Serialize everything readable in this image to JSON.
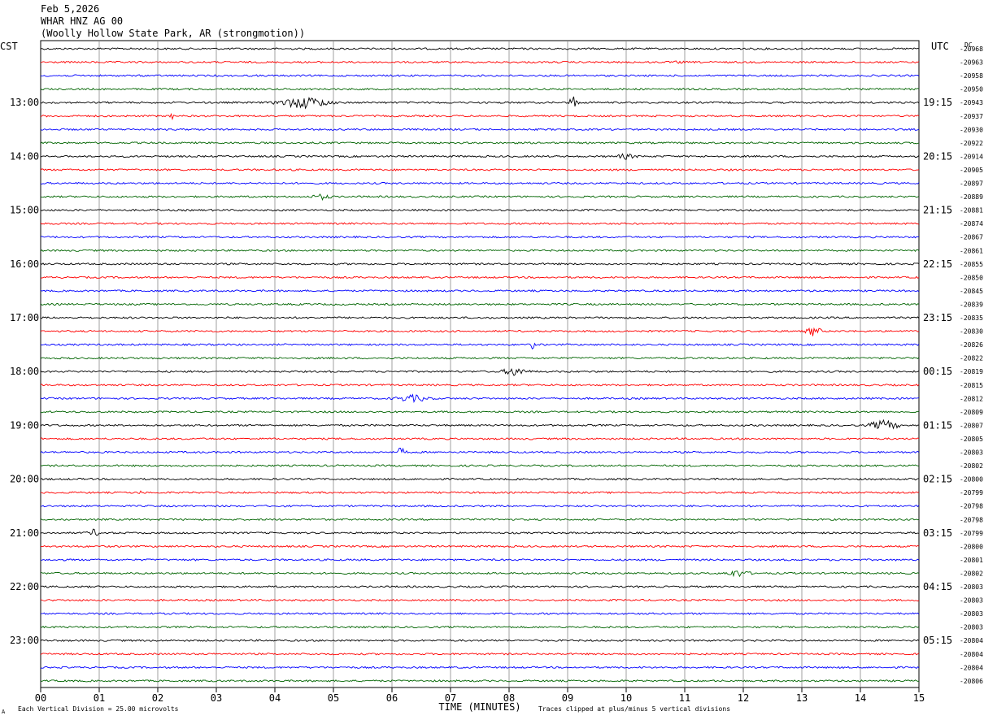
{
  "header": {
    "date": "Feb 5,2026",
    "station": "WHAR HNZ AG 00",
    "location": "(Woolly Hollow State Park, AR (strongmotion))"
  },
  "labels": {
    "left_tz": "CST",
    "right_tz": "UTC",
    "dc_label": "DC"
  },
  "footer": {
    "scale_note": "Each Vertical Division =   25.00 microvolts",
    "xlabel": "TIME (MINUTES)",
    "clip_note": "Traces clipped at plus/minus 5 vertical divisions",
    "corner_mark": "A"
  },
  "chart_data": {
    "type": "line",
    "xlabel": "TIME (MINUTES)",
    "x_ticks": [
      "00",
      "01",
      "02",
      "03",
      "04",
      "05",
      "06",
      "07",
      "08",
      "09",
      "10",
      "11",
      "12",
      "13",
      "14",
      "15"
    ],
    "xlim": [
      0,
      15
    ],
    "trace_colors": [
      "#000000",
      "#ff0000",
      "#0000ff",
      "#006400"
    ],
    "trace_count": 48,
    "left_hour_labels": [
      "13:00",
      "14:00",
      "15:00",
      "16:00",
      "17:00",
      "18:00",
      "19:00",
      "20:00",
      "21:00",
      "22:00",
      "23:00"
    ],
    "right_hour_labels": [
      "19:15",
      "20:15",
      "21:15",
      "22:15",
      "23:15",
      "00:15",
      "01:15",
      "02:15",
      "03:15",
      "04:15",
      "05:15"
    ],
    "hour_label_first_trace": 4,
    "dc_offsets": [
      "-20968",
      "-20963",
      "-20958",
      "-20950",
      "-20943",
      "-20937",
      "-20930",
      "-20922",
      "-20914",
      "-20905",
      "-20897",
      "-20889",
      "-20881",
      "-20874",
      "-20867",
      "-20861",
      "-20855",
      "-20850",
      "-20845",
      "-20839",
      "-20835",
      "-20830",
      "-20826",
      "-20822",
      "-20819",
      "-20815",
      "-20812",
      "-20809",
      "-20807",
      "-20805",
      "-20803",
      "-20802",
      "-20800",
      "-20799",
      "-20798",
      "-20798",
      "-20799",
      "-20800",
      "-20801",
      "-20802",
      "-20803",
      "-20803",
      "-20803",
      "-20803",
      "-20804",
      "-20804",
      "-20804",
      "-20806"
    ],
    "events": [
      {
        "trace": 1,
        "minute": 10.9,
        "width": 0.25,
        "amp": 2
      },
      {
        "trace": 4,
        "minute": 4.5,
        "width": 0.7,
        "amp": 8
      },
      {
        "trace": 4,
        "minute": 9.1,
        "width": 0.12,
        "amp": 9
      },
      {
        "trace": 5,
        "minute": 2.25,
        "width": 0.08,
        "amp": 4
      },
      {
        "trace": 8,
        "minute": 10.0,
        "width": 0.3,
        "amp": 4
      },
      {
        "trace": 11,
        "minute": 4.8,
        "width": 0.3,
        "amp": 4
      },
      {
        "trace": 21,
        "minute": 13.2,
        "width": 0.2,
        "amp": 7
      },
      {
        "trace": 22,
        "minute": 8.4,
        "width": 0.05,
        "amp": 8
      },
      {
        "trace": 24,
        "minute": 8.1,
        "width": 0.35,
        "amp": 6
      },
      {
        "trace": 26,
        "minute": 6.35,
        "width": 0.5,
        "amp": 5
      },
      {
        "trace": 28,
        "minute": 14.4,
        "width": 0.4,
        "amp": 7
      },
      {
        "trace": 30,
        "minute": 6.15,
        "width": 0.15,
        "amp": 6
      },
      {
        "trace": 33,
        "minute": 1.7,
        "width": 0.05,
        "amp": 4
      },
      {
        "trace": 33,
        "minute": 4.05,
        "width": 0.05,
        "amp": 3
      },
      {
        "trace": 36,
        "minute": 0.9,
        "width": 0.2,
        "amp": 5
      },
      {
        "trace": 39,
        "minute": 11.9,
        "width": 0.35,
        "amp": 5
      }
    ]
  }
}
